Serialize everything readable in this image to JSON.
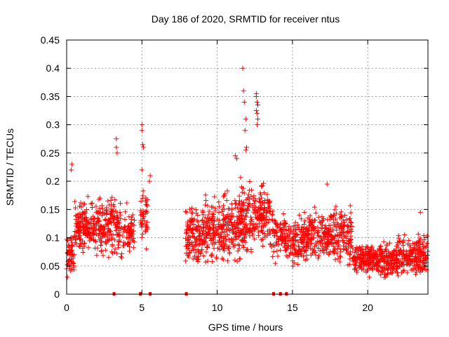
{
  "chart_data": {
    "type": "scatter",
    "title": "Day 186 of 2020, SRMTID for receiver ntus",
    "xlabel": "GPS time / hours",
    "ylabel": "SRMTID / TECUs",
    "xlim": [
      0,
      24
    ],
    "ylim": [
      0,
      0.45
    ],
    "xticks": [
      0,
      5,
      10,
      15,
      20
    ],
    "xtick_labels": [
      "0",
      "5",
      "10",
      "15",
      "20"
    ],
    "yticks": [
      0,
      0.05,
      0.1,
      0.15,
      0.2,
      0.25,
      0.3,
      0.35,
      0.4,
      0.45
    ],
    "ytick_labels": [
      "0",
      "0.05",
      "0.1",
      "0.15",
      "0.2",
      "0.25",
      "0.3",
      "0.35",
      "0.4",
      "0.45"
    ],
    "grid": true,
    "marker": "+",
    "colors": {
      "series": "#ff0000",
      "grid": "#a0a0a0",
      "axes": "#000000"
    },
    "series": [
      {
        "name": "SRMTID",
        "density_profile": [
          {
            "x0": 0.0,
            "x1": 0.5,
            "ymin": 0.02,
            "ymax": 0.12,
            "n": 60
          },
          {
            "x0": 0.5,
            "x1": 1.0,
            "ymin": 0.06,
            "ymax": 0.17,
            "n": 60
          },
          {
            "x0": 1.0,
            "x1": 2.0,
            "ymin": 0.06,
            "ymax": 0.18,
            "n": 110
          },
          {
            "x0": 2.0,
            "x1": 3.0,
            "ymin": 0.05,
            "ymax": 0.2,
            "n": 110
          },
          {
            "x0": 3.0,
            "x1": 3.6,
            "ymin": 0.06,
            "ymax": 0.18,
            "n": 60
          },
          {
            "x0": 3.6,
            "x1": 4.5,
            "ymin": 0.05,
            "ymax": 0.17,
            "n": 70
          },
          {
            "x0": 4.9,
            "x1": 5.4,
            "ymin": 0.07,
            "ymax": 0.2,
            "n": 45
          },
          {
            "x0": 7.9,
            "x1": 9.0,
            "ymin": 0.04,
            "ymax": 0.17,
            "n": 120
          },
          {
            "x0": 9.0,
            "x1": 10.5,
            "ymin": 0.04,
            "ymax": 0.19,
            "n": 170
          },
          {
            "x0": 10.5,
            "x1": 11.5,
            "ymin": 0.04,
            "ymax": 0.2,
            "n": 110
          },
          {
            "x0": 11.5,
            "x1": 12.5,
            "ymin": 0.05,
            "ymax": 0.22,
            "n": 120
          },
          {
            "x0": 12.5,
            "x1": 13.5,
            "ymin": 0.07,
            "ymax": 0.21,
            "n": 110
          },
          {
            "x0": 13.5,
            "x1": 14.5,
            "ymin": 0.05,
            "ymax": 0.16,
            "n": 80
          },
          {
            "x0": 14.5,
            "x1": 16.0,
            "ymin": 0.04,
            "ymax": 0.15,
            "n": 150
          },
          {
            "x0": 16.0,
            "x1": 17.5,
            "ymin": 0.05,
            "ymax": 0.16,
            "n": 150
          },
          {
            "x0": 17.5,
            "x1": 19.0,
            "ymin": 0.04,
            "ymax": 0.17,
            "n": 150
          },
          {
            "x0": 19.0,
            "x1": 20.5,
            "ymin": 0.03,
            "ymax": 0.1,
            "n": 160
          },
          {
            "x0": 20.5,
            "x1": 22.0,
            "ymin": 0.02,
            "ymax": 0.1,
            "n": 170
          },
          {
            "x0": 22.0,
            "x1": 24.0,
            "ymin": 0.02,
            "ymax": 0.12,
            "n": 200
          }
        ],
        "notable_points": [
          [
            0.05,
            0.03
          ],
          [
            0.3,
            0.22
          ],
          [
            0.35,
            0.23
          ],
          [
            3.3,
            0.275
          ],
          [
            3.3,
            0.26
          ],
          [
            3.35,
            0.25
          ],
          [
            5.0,
            0.3
          ],
          [
            5.0,
            0.29
          ],
          [
            5.05,
            0.265
          ],
          [
            5.1,
            0.26
          ],
          [
            5.0,
            0.22
          ],
          [
            5.3,
            0.08
          ],
          [
            5.5,
            0.2
          ],
          [
            5.55,
            0.21
          ],
          [
            11.2,
            0.245
          ],
          [
            11.3,
            0.24
          ],
          [
            11.7,
            0.4
          ],
          [
            11.75,
            0.36
          ],
          [
            11.8,
            0.34
          ],
          [
            11.9,
            0.31
          ],
          [
            11.85,
            0.29
          ],
          [
            11.95,
            0.26
          ],
          [
            11.9,
            0.255
          ],
          [
            12.6,
            0.355
          ],
          [
            12.6,
            0.35
          ],
          [
            12.65,
            0.34
          ],
          [
            12.7,
            0.335
          ],
          [
            12.6,
            0.325
          ],
          [
            12.65,
            0.32
          ],
          [
            12.7,
            0.31
          ],
          [
            12.65,
            0.3
          ],
          [
            17.3,
            0.195
          ],
          [
            20.1,
            0.03
          ],
          [
            23.5,
            0.145
          ]
        ],
        "zero_markers_x": [
          3.15,
          4.9,
          5.55,
          7.95,
          13.75,
          14.2,
          14.6
        ]
      }
    ]
  }
}
